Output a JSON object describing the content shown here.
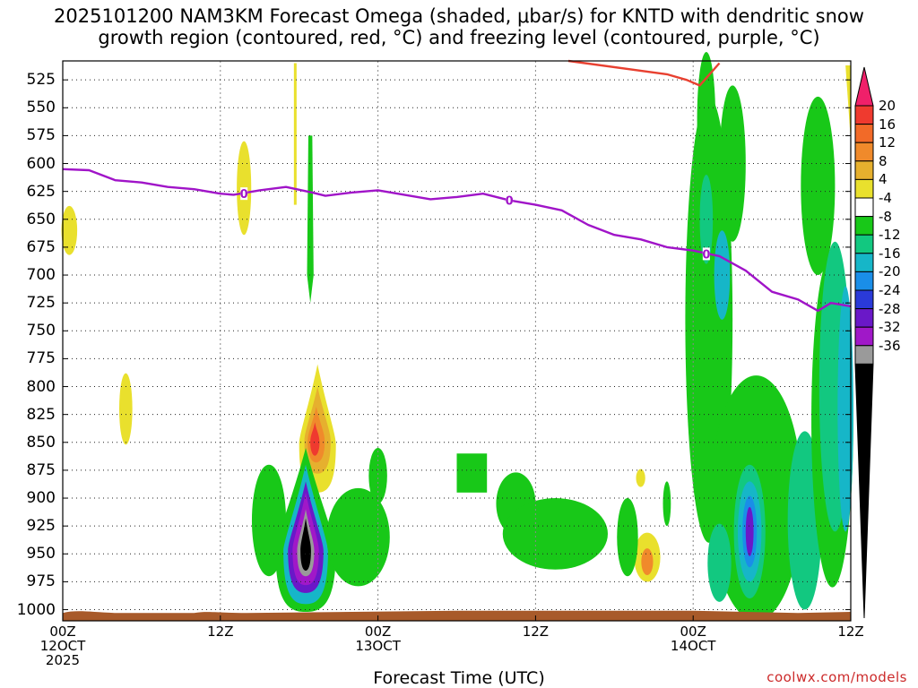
{
  "title": {
    "line1": "2025101200 NAM3KM Forecast Omega (shaded, μbar/s) for KNTD with dendritic snow",
    "line2": "growth region (contoured, red, °C) and freezing level (contoured, purple, °C)"
  },
  "xaxis": {
    "title": "Forecast Time (UTC)",
    "ticks": [
      {
        "hour": 0,
        "l1": "00Z",
        "l2": "12OCT",
        "l3": "2025"
      },
      {
        "hour": 12,
        "l1": "12Z",
        "l2": "",
        "l3": ""
      },
      {
        "hour": 24,
        "l1": "00Z",
        "l2": "13OCT",
        "l3": ""
      },
      {
        "hour": 36,
        "l1": "12Z",
        "l2": "",
        "l3": ""
      },
      {
        "hour": 48,
        "l1": "00Z",
        "l2": "14OCT",
        "l3": ""
      },
      {
        "hour": 60,
        "l1": "12Z",
        "l2": "",
        "l3": ""
      }
    ]
  },
  "yaxis": {
    "label": "",
    "levels": [
      525,
      550,
      575,
      600,
      625,
      650,
      675,
      700,
      725,
      750,
      775,
      800,
      825,
      850,
      875,
      900,
      925,
      950,
      975,
      1000
    ]
  },
  "colorbar": {
    "labels": [
      20,
      16,
      12,
      8,
      4,
      -4,
      -8,
      -12,
      -16,
      -20,
      -24,
      -28,
      -32,
      -36
    ],
    "colors": [
      "#f0206a",
      "#ef3a2f",
      "#f26a28",
      "#f08a2b",
      "#e6b02e",
      "#e9e02d",
      "#ffffff",
      "#18c818",
      "#12c880",
      "#16b6c8",
      "#1a8ee8",
      "#2a3ad8",
      "#6a18c8",
      "#a018c8",
      "#9a9a9a",
      "#000000"
    ]
  },
  "credit": "coolwx.com/models",
  "chart_data": {
    "type": "heatmap",
    "title": "2025101200 NAM3KM Forecast Omega (shaded, μbar/s) for KNTD with dendritic snow growth region (contoured, red, °C) and freezing level (contoured, purple, °C)",
    "xlabel": "Forecast Time (UTC)",
    "ylabel": "",
    "x_unit": "forecast hour",
    "xlim": [
      0,
      60
    ],
    "ylim": [
      1010,
      508
    ],
    "y_axis": "pressure (mb), inverted",
    "shading_units": "μbar/s",
    "omega_cells": [
      {
        "hour": 0.5,
        "mb": 660,
        "value": 5
      },
      {
        "hour": 4.8,
        "mb": 820,
        "value": 5
      },
      {
        "hour": 13.8,
        "mb": 622,
        "value": 5
      },
      {
        "hour": 18.5,
        "mb": 940,
        "value": -36
      },
      {
        "hour": 18.5,
        "mb": 925,
        "value": -28
      },
      {
        "hour": 19.3,
        "mb": 840,
        "value": 16
      },
      {
        "hour": 19.3,
        "mb": 830,
        "value": 8
      },
      {
        "hour": 22.5,
        "mb": 935,
        "value": -6
      },
      {
        "hour": 30.0,
        "mb": 875,
        "value": -6
      },
      {
        "hour": 36.5,
        "mb": 925,
        "value": -6
      },
      {
        "hour": 44.5,
        "mb": 953,
        "value": 8
      },
      {
        "hour": 49.0,
        "mb": 650,
        "value": -10
      },
      {
        "hour": 52.3,
        "mb": 930,
        "value": -22
      },
      {
        "hour": 58.5,
        "mb": 800,
        "value": -14
      }
    ],
    "freezing_level_0C": {
      "label": "0",
      "hours": [
        0,
        2,
        4,
        6,
        8,
        10,
        12,
        13,
        15,
        17,
        19,
        20,
        22,
        24,
        26,
        28,
        30,
        32,
        34,
        36,
        38,
        40,
        42,
        44,
        46,
        48,
        50,
        52,
        54,
        56,
        57.5,
        58.5,
        60
      ],
      "mb": [
        605,
        606,
        615,
        617,
        621,
        623,
        627,
        628,
        624,
        621,
        626,
        629,
        626,
        624,
        628,
        632,
        630,
        627,
        633,
        637,
        642,
        655,
        664,
        668,
        675,
        678,
        683,
        696,
        715,
        722,
        732,
        725,
        728
      ]
    },
    "dendritic_growth_top": {
      "hours": [
        38.5,
        46,
        47.5,
        48.5,
        50
      ],
      "mb": [
        508,
        520,
        525,
        530,
        510
      ]
    },
    "ground": "terrain near 1000 mb"
  }
}
